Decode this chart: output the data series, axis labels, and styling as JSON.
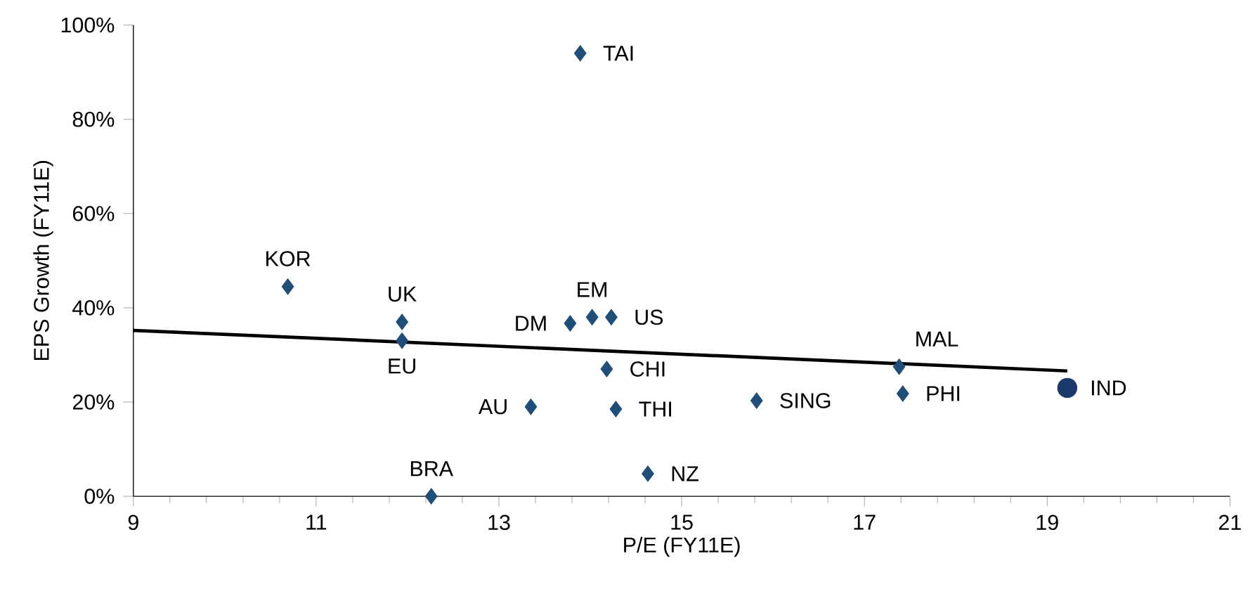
{
  "chart_data": {
    "type": "scatter",
    "xlabel": "P/E (FY11E)",
    "ylabel": "EPS Growth (FY11E)",
    "xlim": [
      9,
      21
    ],
    "xticks": [
      9,
      11,
      13,
      15,
      17,
      19,
      21
    ],
    "ylim": [
      0,
      100
    ],
    "yticks": [
      {
        "value": 0,
        "label": "0%"
      },
      {
        "value": 20,
        "label": "20%"
      },
      {
        "value": 40,
        "label": "40%"
      },
      {
        "value": 60,
        "label": "60%"
      },
      {
        "value": 80,
        "label": "80%"
      },
      {
        "value": 100,
        "label": "100%"
      }
    ],
    "series": [
      {
        "marker": "diamond",
        "color": "#1f4e79",
        "x": [
          13.89,
          10.69,
          11.94,
          11.94,
          13.78,
          14.02,
          14.23,
          14.18,
          13.35,
          14.28,
          15.82,
          14.63,
          12.26,
          17.38,
          17.42
        ],
        "values": [
          94,
          44.5,
          37,
          33,
          36.7,
          38,
          38,
          27,
          19,
          18.5,
          20.3,
          4.8,
          0,
          27.5,
          21.8
        ]
      },
      {
        "marker": "circle",
        "color": "#1a3a6b",
        "x": [
          19.22
        ],
        "values": [
          23
        ]
      },
      {
        "type": "line",
        "marker": "none",
        "color": "#000000",
        "x": [
          9,
          19.22
        ],
        "values": [
          35.2,
          26.6
        ]
      }
    ],
    "annotations": [
      {
        "text": "TAI",
        "x": 13.89,
        "y": 94
      },
      {
        "text": "KOR",
        "x": 10.69,
        "y": 44.5
      },
      {
        "text": "UK",
        "x": 11.94,
        "y": 37
      },
      {
        "text": "EU",
        "x": 11.94,
        "y": 33
      },
      {
        "text": "DM",
        "x": 13.78,
        "y": 36.7
      },
      {
        "text": "EM",
        "x": 14.02,
        "y": 38
      },
      {
        "text": "US",
        "x": 14.23,
        "y": 38
      },
      {
        "text": "CHI",
        "x": 14.18,
        "y": 27
      },
      {
        "text": "AU",
        "x": 13.35,
        "y": 19
      },
      {
        "text": "THI",
        "x": 14.28,
        "y": 18.5
      },
      {
        "text": "SING",
        "x": 15.82,
        "y": 20.3
      },
      {
        "text": "NZ",
        "x": 14.63,
        "y": 4.8
      },
      {
        "text": "BRA",
        "x": 12.26,
        "y": 0
      },
      {
        "text": "MAL",
        "x": 17.38,
        "y": 27.5
      },
      {
        "text": "PHI",
        "x": 17.42,
        "y": 21.8
      },
      {
        "text": "IND",
        "x": 19.22,
        "y": 23
      }
    ]
  }
}
